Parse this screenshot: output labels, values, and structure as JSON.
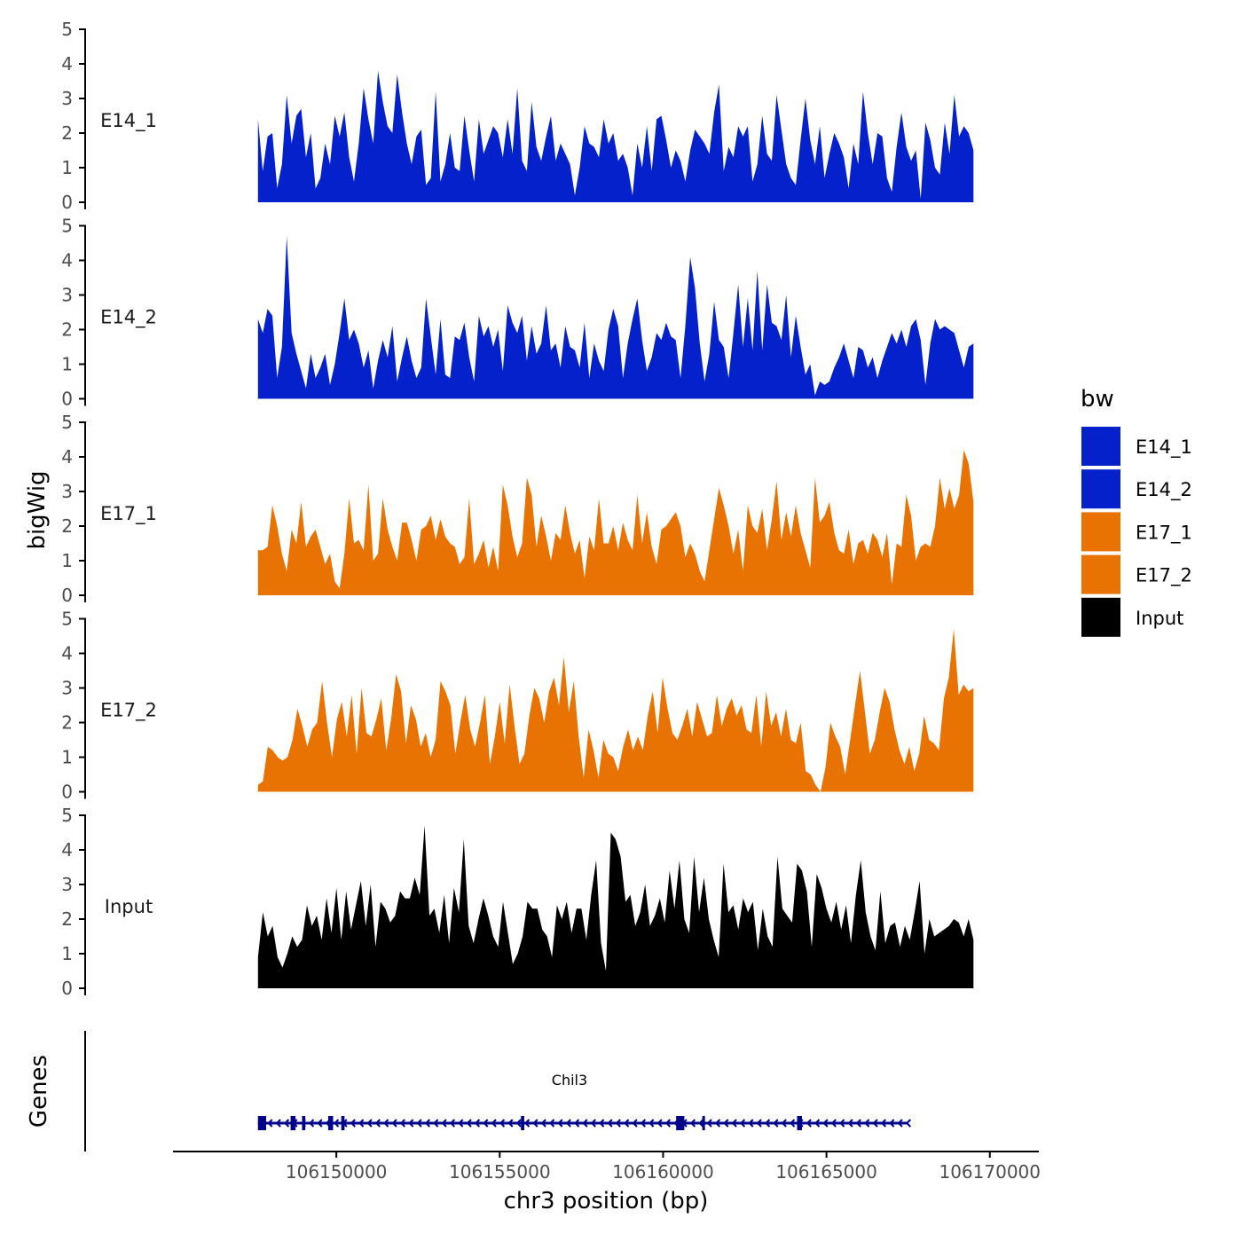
{
  "chart_data": {
    "type": "area",
    "title": "",
    "ylabel": "bigWig",
    "xlabel": "chr3 position (bp)",
    "xlim": [
      106145000,
      106171500
    ],
    "x_range": [
      106147600,
      106169500
    ],
    "x_ticks": [
      106150000,
      106155000,
      106160000,
      106165000,
      106170000
    ],
    "x_tick_labels": [
      "106150000",
      "106155000",
      "106160000",
      "106165000",
      "106170000"
    ],
    "ylim": [
      0,
      5
    ],
    "y_ticks": [
      0,
      1,
      2,
      3,
      4,
      5
    ],
    "y_tick_labels": [
      "0",
      "1",
      "2",
      "3",
      "4",
      "5"
    ],
    "series": [
      {
        "name": "E14_1",
        "color": "#0521CC",
        "values": [
          2.4,
          0.9,
          1.9,
          2.0,
          0.4,
          1.1,
          3.1,
          1.7,
          2.5,
          2.7,
          1.3,
          2.0,
          0.4,
          0.7,
          1.7,
          1.1,
          2.5,
          1.9,
          2.6,
          1.3,
          0.6,
          1.7,
          3.3,
          2.4,
          1.7,
          3.8,
          2.9,
          2.2,
          2.0,
          3.7,
          2.6,
          1.7,
          1.1,
          1.9,
          2.1,
          0.5,
          0.7,
          3.2,
          0.6,
          1.1,
          2.0,
          1.0,
          0.9,
          2.5,
          1.5,
          0.6,
          2.4,
          1.4,
          1.8,
          2.2,
          2.0,
          1.3,
          2.4,
          1.4,
          3.3,
          1.2,
          0.9,
          2.9,
          1.6,
          1.2,
          1.9,
          2.5,
          1.2,
          1.7,
          1.4,
          1.1,
          0.2,
          1.0,
          2.2,
          1.7,
          1.6,
          1.3,
          2.4,
          1.7,
          2.0,
          1.2,
          1.4,
          1.0,
          0.2,
          1.7,
          1.0,
          2.2,
          0.9,
          2.4,
          2.5,
          1.8,
          1.0,
          1.5,
          1.2,
          0.6,
          1.5,
          2.1,
          1.9,
          1.7,
          1.4,
          2.6,
          3.4,
          0.9,
          1.6,
          1.3,
          2.2,
          1.9,
          2.2,
          0.6,
          1.1,
          2.5,
          1.4,
          1.2,
          3.1,
          2.1,
          1.1,
          0.7,
          0.5,
          1.8,
          3.0,
          1.8,
          1.1,
          2.2,
          0.7,
          1.4,
          2.0,
          1.7,
          1.3,
          0.4,
          1.7,
          1.1,
          3.2,
          2.0,
          1.1,
          2.0,
          1.9,
          0.7,
          0.3,
          1.6,
          2.6,
          1.6,
          1.2,
          1.5,
          0.1,
          2.3,
          1.8,
          1.0,
          0.8,
          2.3,
          1.4,
          3.1,
          1.9,
          2.2,
          2.0,
          1.5
        ]
      },
      {
        "name": "E14_2",
        "color": "#0521CC",
        "values": [
          2.3,
          1.9,
          2.6,
          2.4,
          0.6,
          1.5,
          4.7,
          1.9,
          1.3,
          0.8,
          0.3,
          1.3,
          0.6,
          0.9,
          1.3,
          0.4,
          1.0,
          1.9,
          2.9,
          1.7,
          2.0,
          1.6,
          0.9,
          1.4,
          0.3,
          1.1,
          1.7,
          1.2,
          2.1,
          0.5,
          1.2,
          1.8,
          1.1,
          0.6,
          0.9,
          2.9,
          1.8,
          0.7,
          2.3,
          0.7,
          0.6,
          1.8,
          1.7,
          2.2,
          1.2,
          0.5,
          2.4,
          1.8,
          2.1,
          1.5,
          2.0,
          0.8,
          2.7,
          2.2,
          1.9,
          2.4,
          1.1,
          2.1,
          1.3,
          1.6,
          2.7,
          1.4,
          1.6,
          0.9,
          2.1,
          1.5,
          1.4,
          0.9,
          2.2,
          0.6,
          1.6,
          1.1,
          0.8,
          2.0,
          2.6,
          2.1,
          0.6,
          1.6,
          2.3,
          2.9,
          1.7,
          0.8,
          1.2,
          1.9,
          1.7,
          2.2,
          1.8,
          1.7,
          0.6,
          2.1,
          4.1,
          3.2,
          1.6,
          0.5,
          1.3,
          2.8,
          1.7,
          1.5,
          0.6,
          1.9,
          3.3,
          1.5,
          2.9,
          1.4,
          3.7,
          1.4,
          3.3,
          2.2,
          2.1,
          1.7,
          3.0,
          1.2,
          2.4,
          1.5,
          0.7,
          1.0,
          0.1,
          0.5,
          0.4,
          0.5,
          0.9,
          1.2,
          1.6,
          1.1,
          0.6,
          1.5,
          1.4,
          0.9,
          1.2,
          0.6,
          1.1,
          1.5,
          1.9,
          1.6,
          2.0,
          1.5,
          2.1,
          2.3,
          1.7,
          0.4,
          1.6,
          2.3,
          2.0,
          2.1,
          2.0,
          1.9,
          1.4,
          0.9,
          1.5,
          1.6
        ]
      },
      {
        "name": "E17_1",
        "color": "#E87303",
        "values": [
          1.3,
          1.3,
          1.4,
          2.6,
          2.0,
          1.2,
          0.7,
          1.9,
          1.5,
          2.7,
          1.4,
          1.7,
          1.9,
          1.4,
          0.9,
          1.2,
          0.4,
          0.2,
          1.2,
          2.8,
          1.5,
          1.6,
          1.3,
          3.2,
          1.0,
          1.2,
          2.8,
          1.9,
          1.4,
          1.0,
          2.1,
          2.1,
          1.6,
          1.0,
          1.9,
          2.0,
          2.3,
          1.6,
          2.2,
          1.7,
          1.5,
          1.4,
          0.9,
          1.1,
          2.8,
          0.9,
          1.2,
          1.6,
          0.8,
          1.4,
          0.7,
          3.2,
          2.6,
          1.7,
          1.1,
          1.5,
          3.4,
          2.9,
          1.4,
          2.3,
          1.7,
          1.0,
          1.8,
          1.6,
          2.6,
          1.8,
          1.2,
          1.6,
          0.5,
          1.7,
          1.3,
          2.8,
          1.5,
          1.5,
          2.0,
          1.3,
          2.1,
          1.6,
          1.3,
          2.9,
          1.5,
          2.4,
          1.4,
          0.9,
          1.9,
          2.0,
          2.2,
          2.4,
          2.0,
          1.1,
          1.5,
          1.2,
          0.7,
          0.4,
          1.3,
          2.2,
          3.1,
          2.6,
          2.0,
          1.2,
          1.9,
          0.7,
          2.6,
          2.0,
          1.8,
          2.5,
          1.3,
          2.2,
          3.3,
          1.6,
          2.4,
          1.7,
          2.6,
          1.8,
          1.3,
          0.8,
          3.4,
          2.1,
          2.3,
          2.7,
          1.8,
          1.3,
          1.2,
          1.9,
          0.9,
          1.5,
          1.6,
          1.2,
          1.8,
          1.6,
          1.1,
          1.8,
          0.3,
          1.5,
          1.4,
          2.9,
          2.3,
          1.0,
          1.4,
          1.5,
          1.4,
          2.0,
          3.4,
          2.5,
          3.1,
          2.5,
          2.9,
          4.2,
          3.8,
          2.7
        ]
      },
      {
        "name": "E17_2",
        "color": "#E87303",
        "values": [
          0.2,
          0.3,
          1.3,
          1.2,
          1.0,
          0.9,
          1.0,
          1.5,
          2.4,
          1.9,
          1.3,
          1.8,
          2.0,
          3.2,
          2.0,
          1.0,
          2.1,
          2.6,
          1.6,
          2.8,
          1.1,
          3.0,
          1.7,
          1.6,
          2.1,
          2.7,
          1.2,
          2.1,
          3.4,
          2.9,
          1.4,
          2.5,
          2.1,
          1.3,
          1.7,
          1.0,
          1.5,
          3.2,
          2.9,
          2.5,
          1.1,
          2.0,
          2.8,
          1.8,
          1.3,
          2.0,
          2.8,
          0.8,
          1.6,
          2.6,
          1.4,
          3.1,
          1.9,
          0.8,
          1.1,
          2.2,
          3.0,
          2.7,
          2.0,
          2.9,
          3.3,
          2.5,
          3.9,
          2.3,
          3.2,
          1.6,
          0.4,
          1.8,
          1.2,
          0.4,
          1.5,
          1.1,
          1.0,
          0.6,
          1.3,
          1.8,
          1.2,
          1.6,
          1.2,
          2.2,
          2.9,
          1.7,
          3.3,
          2.4,
          1.7,
          1.5,
          1.9,
          2.4,
          1.6,
          2.6,
          2.1,
          1.6,
          1.7,
          2.8,
          1.9,
          2.4,
          2.7,
          2.2,
          2.5,
          1.8,
          1.7,
          2.8,
          1.3,
          2.9,
          1.9,
          2.3,
          1.6,
          2.4,
          1.5,
          1.4,
          2.0,
          0.6,
          0.5,
          0.2,
          0.0,
          0.7,
          2.0,
          1.6,
          1.3,
          0.5,
          1.5,
          2.5,
          3.5,
          2.3,
          1.1,
          1.5,
          2.3,
          3.0,
          2.6,
          1.8,
          1.2,
          0.8,
          1.3,
          0.6,
          1.1,
          2.2,
          1.5,
          1.4,
          1.2,
          2.7,
          3.3,
          4.7,
          2.8,
          3.1,
          2.9,
          3.0
        ]
      },
      {
        "name": "Input",
        "color": "#000000",
        "values": [
          0.9,
          2.2,
          1.5,
          1.8,
          0.9,
          0.6,
          1.0,
          1.5,
          1.2,
          1.4,
          2.4,
          1.8,
          2.1,
          1.4,
          2.6,
          1.6,
          2.9,
          1.4,
          2.8,
          1.7,
          2.4,
          3.1,
          1.8,
          3.0,
          1.2,
          2.5,
          2.3,
          1.9,
          2.1,
          2.8,
          2.6,
          2.6,
          3.2,
          2.7,
          4.7,
          2.1,
          2.3,
          1.6,
          2.7,
          1.3,
          2.9,
          2.2,
          4.3,
          1.8,
          1.3,
          2.0,
          2.6,
          2.1,
          1.5,
          1.2,
          2.5,
          1.6,
          0.7,
          1.0,
          1.5,
          2.5,
          2.3,
          2.3,
          1.7,
          1.5,
          0.9,
          2.4,
          2.0,
          2.5,
          1.6,
          2.3,
          2.3,
          1.4,
          2.7,
          3.7,
          1.3,
          0.5,
          4.5,
          4.3,
          3.8,
          2.5,
          2.7,
          1.8,
          2.2,
          3.0,
          1.8,
          2.1,
          2.6,
          1.9,
          3.4,
          2.3,
          3.7,
          2.0,
          1.6,
          3.8,
          2.2,
          3.2,
          2.0,
          1.4,
          0.9,
          3.6,
          2.2,
          2.4,
          1.7,
          2.6,
          2.2,
          2.5,
          1.1,
          2.3,
          1.5,
          1.2,
          3.8,
          2.3,
          2.1,
          1.9,
          3.6,
          3.4,
          2.8,
          1.2,
          3.3,
          2.9,
          2.3,
          1.9,
          2.5,
          1.7,
          2.4,
          1.3,
          2.7,
          3.7,
          2.2,
          1.5,
          1.1,
          2.8,
          1.3,
          1.8,
          1.9,
          1.2,
          1.8,
          1.4,
          2.2,
          3.1,
          1.0,
          2.0,
          1.5,
          1.6,
          1.7,
          1.8,
          2.0,
          1.9,
          1.5,
          2.0,
          1.4
        ]
      }
    ],
    "legend": {
      "title": "bw",
      "position": "right",
      "entries": [
        {
          "label": "E14_1",
          "color": "#0521CC"
        },
        {
          "label": "E14_2",
          "color": "#0521CC"
        },
        {
          "label": "E17_1",
          "color": "#E87303"
        },
        {
          "label": "E17_2",
          "color": "#E87303"
        },
        {
          "label": "Input",
          "color": "#000000"
        }
      ]
    },
    "gene_track": {
      "title": "Genes",
      "gene_name": "Chil3",
      "strand": "-",
      "color": "#00008B",
      "start": 106147600,
      "end": 106167500,
      "exons": [
        {
          "start": 106147600,
          "end": 106147850
        },
        {
          "start": 106148600,
          "end": 106148750
        },
        {
          "start": 106148950,
          "end": 106149050
        },
        {
          "start": 106149750,
          "end": 106149900
        },
        {
          "start": 106150150,
          "end": 106150250
        },
        {
          "start": 106155650,
          "end": 106155750
        },
        {
          "start": 106160400,
          "end": 106160650
        },
        {
          "start": 106161200,
          "end": 106161280
        },
        {
          "start": 106164100,
          "end": 106164250
        }
      ]
    }
  }
}
